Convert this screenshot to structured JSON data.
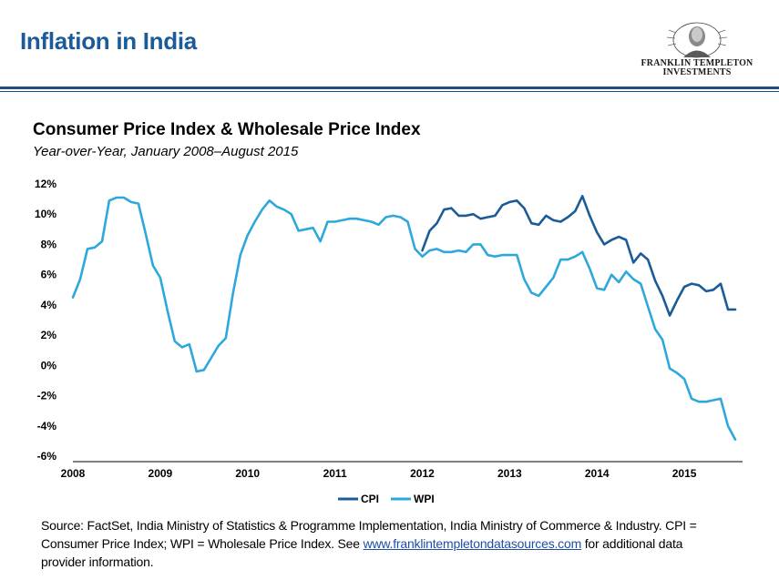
{
  "header": {
    "title": "Inflation in India",
    "logo_line1": "FRANKLIN TEMPLETON",
    "logo_line2": "INVESTMENTS"
  },
  "chart_data": {
    "type": "line",
    "title": "Consumer Price Index & Wholesale Price Index",
    "subtitle": "Year-over-Year, January 2008–August 2015",
    "xlabel": "",
    "ylabel": "",
    "x_ticks": [
      "2008",
      "2009",
      "2010",
      "2011",
      "2012",
      "2013",
      "2014",
      "2015"
    ],
    "y_ticks": [
      "12%",
      "10%",
      "8%",
      "6%",
      "4%",
      "2%",
      "0%",
      "-2%",
      "-4%",
      "-6%"
    ],
    "ylim": [
      -6,
      12
    ],
    "xlim": [
      "2008-01",
      "2015-09"
    ],
    "grid": false,
    "legend_position": "bottom",
    "series": [
      {
        "name": "CPI",
        "color": "#1b5c98",
        "x": [
          "2012-01",
          "2012-02",
          "2012-03",
          "2012-04",
          "2012-05",
          "2012-06",
          "2012-07",
          "2012-08",
          "2012-09",
          "2012-10",
          "2012-11",
          "2012-12",
          "2013-01",
          "2013-02",
          "2013-03",
          "2013-04",
          "2013-05",
          "2013-06",
          "2013-07",
          "2013-08",
          "2013-09",
          "2013-10",
          "2013-11",
          "2013-12",
          "2014-01",
          "2014-02",
          "2014-03",
          "2014-04",
          "2014-05",
          "2014-06",
          "2014-07",
          "2014-08",
          "2014-09",
          "2014-10",
          "2014-11",
          "2014-12",
          "2015-01",
          "2015-02",
          "2015-03",
          "2015-04",
          "2015-05",
          "2015-06",
          "2015-07",
          "2015-08"
        ],
        "values": [
          7.6,
          8.9,
          9.4,
          10.3,
          10.4,
          9.9,
          9.9,
          10.0,
          9.7,
          9.8,
          9.9,
          10.6,
          10.8,
          10.9,
          10.4,
          9.4,
          9.3,
          9.9,
          9.6,
          9.5,
          9.8,
          10.2,
          11.2,
          9.9,
          8.8,
          8.0,
          8.3,
          8.5,
          8.3,
          6.8,
          7.4,
          7.0,
          5.6,
          4.6,
          3.3,
          4.3,
          5.2,
          5.4,
          5.3,
          4.9,
          5.0,
          5.4,
          3.7,
          3.7
        ]
      },
      {
        "name": "WPI",
        "color": "#2ea8dc",
        "x": [
          "2008-01",
          "2008-02",
          "2008-03",
          "2008-04",
          "2008-05",
          "2008-06",
          "2008-07",
          "2008-08",
          "2008-09",
          "2008-10",
          "2008-11",
          "2008-12",
          "2009-01",
          "2009-02",
          "2009-03",
          "2009-04",
          "2009-05",
          "2009-06",
          "2009-07",
          "2009-08",
          "2009-09",
          "2009-10",
          "2009-11",
          "2009-12",
          "2010-01",
          "2010-02",
          "2010-03",
          "2010-04",
          "2010-05",
          "2010-06",
          "2010-07",
          "2010-08",
          "2010-09",
          "2010-10",
          "2010-11",
          "2010-12",
          "2011-01",
          "2011-02",
          "2011-03",
          "2011-04",
          "2011-05",
          "2011-06",
          "2011-07",
          "2011-08",
          "2011-09",
          "2011-10",
          "2011-11",
          "2011-12",
          "2012-01",
          "2012-02",
          "2012-03",
          "2012-04",
          "2012-05",
          "2012-06",
          "2012-07",
          "2012-08",
          "2012-09",
          "2012-10",
          "2012-11",
          "2012-12",
          "2013-01",
          "2013-02",
          "2013-03",
          "2013-04",
          "2013-05",
          "2013-06",
          "2013-07",
          "2013-08",
          "2013-09",
          "2013-10",
          "2013-11",
          "2013-12",
          "2014-01",
          "2014-02",
          "2014-03",
          "2014-04",
          "2014-05",
          "2014-06",
          "2014-07",
          "2014-08",
          "2014-09",
          "2014-10",
          "2014-11",
          "2014-12",
          "2015-01",
          "2015-02",
          "2015-03",
          "2015-04",
          "2015-05",
          "2015-06",
          "2015-07",
          "2015-08"
        ],
        "values": [
          4.5,
          5.7,
          7.7,
          7.8,
          8.2,
          10.9,
          11.1,
          11.1,
          10.8,
          10.7,
          8.7,
          6.6,
          5.8,
          3.6,
          1.6,
          1.2,
          1.4,
          -0.4,
          -0.3,
          0.5,
          1.3,
          1.8,
          4.8,
          7.3,
          8.6,
          9.5,
          10.3,
          10.9,
          10.5,
          10.3,
          10.0,
          8.9,
          9.0,
          9.1,
          8.2,
          9.5,
          9.5,
          9.6,
          9.7,
          9.7,
          9.6,
          9.5,
          9.3,
          9.8,
          9.9,
          9.8,
          9.5,
          7.7,
          7.2,
          7.6,
          7.7,
          7.5,
          7.5,
          7.6,
          7.5,
          8.0,
          8.0,
          7.3,
          7.2,
          7.3,
          7.3,
          7.3,
          5.7,
          4.8,
          4.6,
          5.2,
          5.8,
          7.0,
          7.0,
          7.2,
          7.5,
          6.4,
          5.1,
          5.0,
          6.0,
          5.5,
          6.2,
          5.7,
          5.4,
          3.9,
          2.4,
          1.7,
          -0.2,
          -0.5,
          -0.9,
          -2.2,
          -2.4,
          -2.4,
          -2.3,
          -2.2,
          -4.0,
          -4.9
        ]
      }
    ]
  },
  "source": {
    "text_before": "Source: FactSet, India Ministry of Statistics  & Programme Implementation, India Ministry of Commerce & Industry. CPI = Consumer Price Index; WPI = Wholesale Price Index.  See ",
    "link": "www.franklintempletondatasources.com",
    "text_after": " for additional data provider information."
  }
}
